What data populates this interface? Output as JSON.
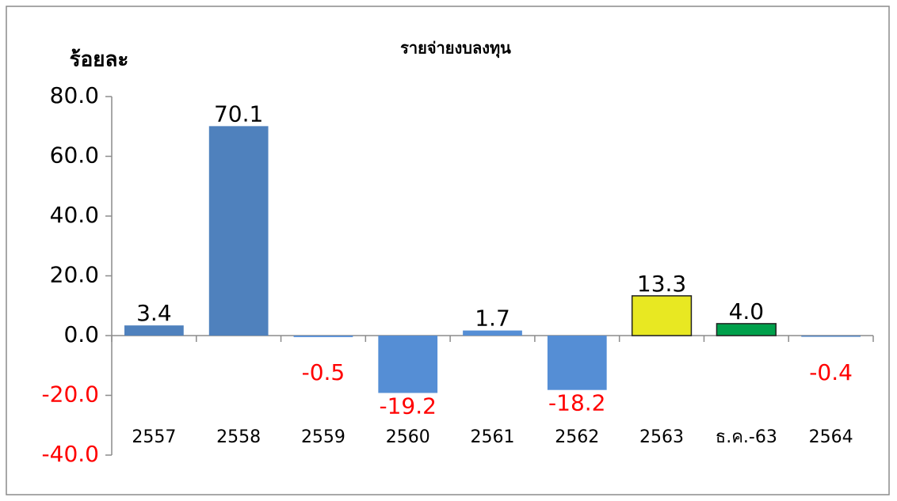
{
  "chart_data": {
    "type": "bar",
    "title": "รายจ่ายงบลงทุน",
    "ylabel": "ร้อยละ",
    "categories": [
      "2557",
      "2558",
      "2559",
      "2560",
      "2561",
      "2562",
      "2563",
      "ธ.ค.-63",
      "2564"
    ],
    "values": [
      3.4,
      70.1,
      -0.5,
      -19.2,
      1.7,
      -18.2,
      13.3,
      4.0,
      -0.4
    ],
    "value_labels": [
      "3.4",
      "70.1",
      "-0.5",
      "-19.2",
      "1.7",
      "-18.2",
      "13.3",
      "4.0",
      "-0.4"
    ],
    "colors": [
      "#4f81bd",
      "#4f81bd",
      "#558ed5",
      "#558ed5",
      "#558ed5",
      "#558ed5",
      "#e8e822",
      "#00a04b",
      "#4f81bd"
    ],
    "edge_colors": [
      "none",
      "none",
      "none",
      "none",
      "none",
      "none",
      "#222222",
      "#222222",
      "none"
    ],
    "positive_label_color": "#000000",
    "negative_label_color": "#ff0000",
    "ylim": [
      -40,
      80
    ],
    "yticks": [
      {
        "value": -40,
        "label": "-40.0"
      },
      {
        "value": -20,
        "label": "-20.0"
      },
      {
        "value": 0,
        "label": "0.0"
      },
      {
        "value": 20,
        "label": "20.0"
      },
      {
        "value": 40,
        "label": "40.0"
      },
      {
        "value": 60,
        "label": "60.0"
      },
      {
        "value": 80,
        "label": "80.0"
      }
    ],
    "grid": false
  }
}
